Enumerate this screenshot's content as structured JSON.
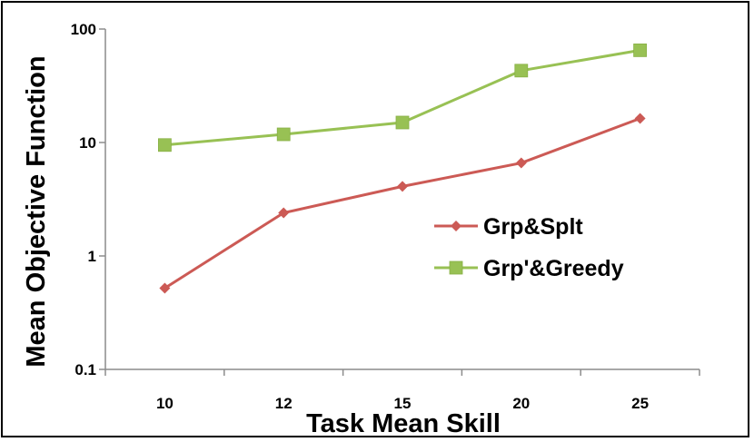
{
  "chart_data": {
    "type": "line",
    "xlabel": "Task Mean Skill",
    "ylabel": "Mean Objective Function",
    "categories": [
      "10",
      "12",
      "15",
      "20",
      "25"
    ],
    "y_scale": "log",
    "ylim": [
      0.1,
      100
    ],
    "y_ticks": [
      {
        "value": 0.1,
        "label": "0.1"
      },
      {
        "value": 1,
        "label": "1"
      },
      {
        "value": 10,
        "label": "10"
      },
      {
        "value": 100,
        "label": "100"
      }
    ],
    "grid": false,
    "legend_position": "right-center",
    "series": [
      {
        "name": "Grp&Splt",
        "color": "#cc5a55",
        "marker": "diamond",
        "values": [
          0.52,
          2.4,
          4.1,
          6.6,
          16.3
        ]
      },
      {
        "name": "Grp'&Greedy",
        "color": "#98c154",
        "marker": "square",
        "values": [
          9.5,
          11.8,
          15.0,
          43.0,
          65.0
        ]
      }
    ]
  }
}
